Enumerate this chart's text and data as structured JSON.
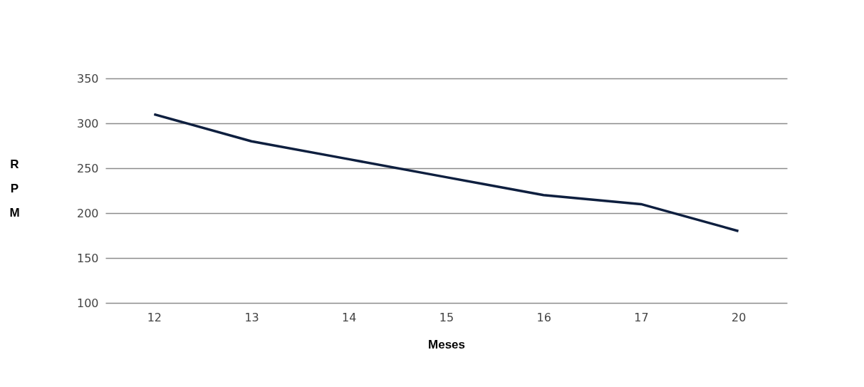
{
  "chart_data": {
    "type": "line",
    "xlabel": "Meses",
    "ylabel": "RPM",
    "categories": [
      "12",
      "13",
      "14",
      "15",
      "16",
      "17",
      "20"
    ],
    "series": [
      {
        "color": "#0e1f3f",
        "values": [
          310,
          280,
          260,
          240,
          220,
          210,
          180
        ]
      }
    ],
    "ylim": [
      100,
      350
    ],
    "yticks": [
      100,
      150,
      200,
      250,
      300,
      350
    ],
    "grid": "y",
    "marker": "none",
    "line_style": "solid"
  }
}
